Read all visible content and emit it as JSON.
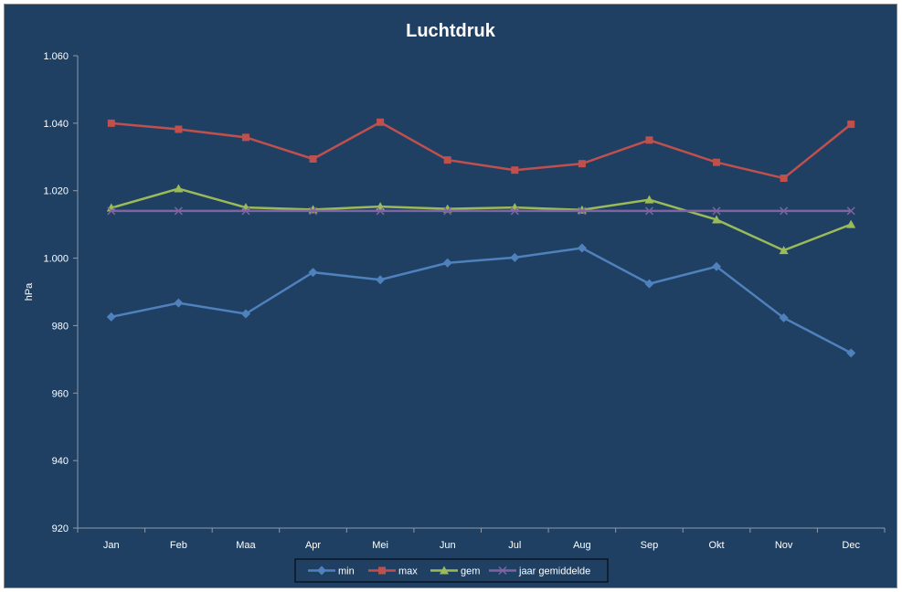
{
  "chart_data": {
    "type": "line",
    "title": "Luchtdruk",
    "xlabel": "",
    "ylabel": "hPa",
    "categories": [
      "Jan",
      "Feb",
      "Maa",
      "Apr",
      "Mei",
      "Jun",
      "Jul",
      "Aug",
      "Sep",
      "Okt",
      "Nov",
      "Dec"
    ],
    "ylim": [
      920,
      1060
    ],
    "yticks": [
      920,
      940,
      960,
      980,
      1000,
      1020,
      1040,
      1060
    ],
    "ytick_labels": [
      "920",
      "940",
      "960",
      "980",
      "1.000",
      "1.020",
      "1.040",
      "1.060"
    ],
    "grid": false,
    "legend_position": "bottom",
    "series": [
      {
        "name": "min",
        "color": "#4f81bd",
        "marker": "diamond",
        "values": [
          982.6,
          986.7,
          983.5,
          995.8,
          993.6,
          998.6,
          1000.2,
          1003.0,
          992.4,
          997.5,
          982.3,
          971.9
        ]
      },
      {
        "name": "max",
        "color": "#c0504d",
        "marker": "square",
        "values": [
          1040.0,
          1038.2,
          1035.8,
          1029.4,
          1040.3,
          1029.1,
          1026.1,
          1028.0,
          1035.0,
          1028.4,
          1023.7,
          1039.7
        ]
      },
      {
        "name": "gem",
        "color": "#9bbb59",
        "marker": "triangle",
        "values": [
          1014.9,
          1020.6,
          1015.0,
          1014.4,
          1015.3,
          1014.6,
          1015.0,
          1014.3,
          1017.3,
          1011.4,
          1002.3,
          1010.0
        ]
      },
      {
        "name": "jaar gemiddelde",
        "color": "#8064a2",
        "marker": "x",
        "values": [
          1014.0,
          1014.0,
          1014.0,
          1014.0,
          1014.0,
          1014.0,
          1014.0,
          1014.0,
          1014.0,
          1014.0,
          1014.0,
          1014.0
        ]
      }
    ]
  }
}
